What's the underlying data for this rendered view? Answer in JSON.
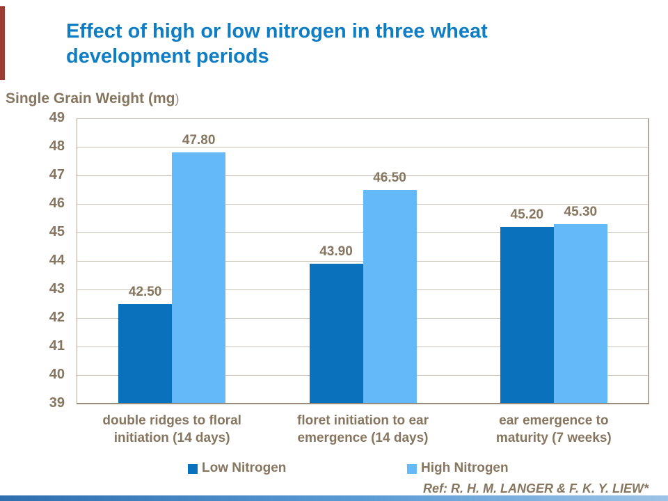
{
  "slide": {
    "title_lines": [
      "Effect of high or low nitrogen in three wheat",
      "development periods"
    ]
  },
  "chart_data": {
    "type": "bar",
    "title": "Effect of high or low nitrogen in three wheat development periods",
    "axis_title_main": "Single Grain Weight (mg",
    "axis_title_close": ")",
    "ylabel": "Single Grain Weight (mg)",
    "xlabel": "",
    "ylim": [
      39,
      49
    ],
    "ytick_labels": [
      "49",
      "48",
      "47",
      "46",
      "45",
      "44",
      "43",
      "42",
      "41",
      "40",
      "39"
    ],
    "grid": true,
    "legend_position": "bottom",
    "categories": [
      [
        "double ridges to floral",
        "initiation (14 days)"
      ],
      [
        "floret initiation to ear",
        "emergence (14 days)"
      ],
      [
        "ear emergence to",
        "maturity (7 weeks)"
      ]
    ],
    "series": [
      {
        "name": "Low Nitrogen",
        "color": "#0a72bd",
        "values": [
          42.5,
          43.9,
          45.2
        ],
        "value_labels": [
          "42.50",
          "43.90",
          "45.20"
        ]
      },
      {
        "name": "High Nitrogen",
        "color": "#64b9f8",
        "values": [
          47.8,
          46.5,
          45.3
        ],
        "value_labels": [
          "47.80",
          "46.50",
          "45.30"
        ]
      }
    ]
  },
  "footer": {
    "reference": "Ref: R. H. M. LANGER & F. K. Y. LIEW*"
  },
  "colors": {
    "title_blue": "#0e7dc4",
    "text_brown": "#86765f",
    "paren_brown": "#9b8c7c",
    "low_nitrogen_blue": "#0a72bd",
    "high_nitrogen_blue": "#64b9f8",
    "gridline": "#cbc1b4",
    "axis_line": "#998b79",
    "plot_border": "#b5a898",
    "accent_left_red": "#9c3d34",
    "accent_bottom_start": "#2f6fb0",
    "accent_bottom_mid": "#5b9bd5",
    "accent_bottom_end": "#9dc3e6"
  }
}
